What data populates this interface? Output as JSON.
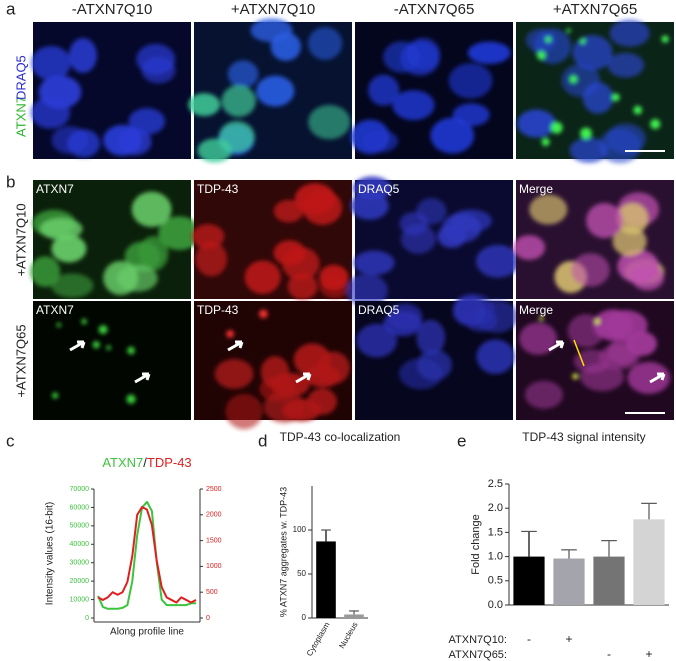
{
  "figure": {
    "a": {
      "label": "a",
      "columns": [
        "-ATXN7Q10",
        "+ATXN7Q10",
        "-ATXN7Q65",
        "+ATXN7Q65"
      ],
      "stain_labels": [
        "ATXN7",
        "DRAQ5"
      ]
    },
    "b": {
      "label": "b",
      "rows": [
        {
          "label": "+ATXN7Q10",
          "channels": [
            "ATXN7",
            "TDP-43",
            "DRAQ5",
            "Merge"
          ]
        },
        {
          "label": "+ATXN7Q65",
          "channels": [
            "ATXN7",
            "TDP-43",
            "DRAQ5",
            "Merge"
          ]
        }
      ]
    },
    "c": {
      "label": "c"
    },
    "d": {
      "label": "d"
    },
    "e": {
      "label": "e"
    }
  },
  "chart_data": [
    {
      "type": "line",
      "legend_separator": "/",
      "x": [
        0,
        1,
        2,
        3,
        4,
        5,
        6,
        7,
        8,
        9,
        10,
        11,
        12,
        13,
        14,
        15,
        16,
        17,
        18,
        19,
        20
      ],
      "xlim": [
        0,
        20
      ],
      "series": [
        {
          "name": "ATXN7",
          "color": "#3cc43c",
          "values": [
            12000,
            6000,
            5000,
            5000,
            5000,
            5500,
            7000,
            20000,
            45000,
            60000,
            63000,
            58000,
            30000,
            10000,
            7000,
            7000,
            7000,
            7000,
            7000,
            8000,
            8000
          ]
        },
        {
          "name": "TDP-43",
          "color": "#e02020",
          "axis": "y2",
          "values": [
            400,
            350,
            400,
            500,
            450,
            500,
            700,
            1200,
            2000,
            2150,
            2100,
            1800,
            1100,
            600,
            400,
            350,
            300,
            400,
            350,
            300,
            350
          ]
        }
      ],
      "xlabel": "Along profile line",
      "ylabel": "Intensity values (16-bit)",
      "ylim": [
        0,
        70000
      ],
      "yticks": [
        0,
        10000,
        20000,
        30000,
        40000,
        50000,
        60000,
        70000
      ],
      "y2lim": [
        0,
        2500
      ],
      "y2ticks": [
        0,
        500,
        1000,
        1500,
        2000,
        2500
      ]
    },
    {
      "type": "bar",
      "title": "TDP-43 co-localization",
      "categories": [
        "Cytoplasm",
        "Nucleus"
      ],
      "values": [
        87,
        4
      ],
      "errors": [
        13,
        4
      ],
      "colors": [
        "#000000",
        "#999999"
      ],
      "ylabel": "% ATXN7 aggregates w. TDP-43",
      "ylim": [
        0,
        150
      ],
      "yticks": [
        0,
        50,
        100
      ]
    },
    {
      "type": "bar",
      "title": "TDP-43 signal intensity",
      "values": [
        1.0,
        0.96,
        1.0,
        1.77
      ],
      "errors": [
        0.52,
        0.18,
        0.33,
        0.33
      ],
      "colors": [
        "#000000",
        "#a4a4ac",
        "#747474",
        "#d4d4d4"
      ],
      "ylabel": "Fold change",
      "ylim": [
        0,
        2.5
      ],
      "yticks": [
        {
          "value": 0,
          "label": "0.0"
        },
        0.5,
        {
          "value": 1,
          "label": "1.0"
        },
        1.5,
        {
          "value": 2,
          "label": "2.0"
        },
        2.5
      ],
      "condition_rows": [
        {
          "label": "ATXN7Q10:",
          "marks": [
            "-",
            "+",
            null,
            null
          ]
        },
        {
          "label": "ATXN7Q65:",
          "marks": [
            null,
            null,
            "-",
            "+"
          ]
        }
      ]
    }
  ]
}
